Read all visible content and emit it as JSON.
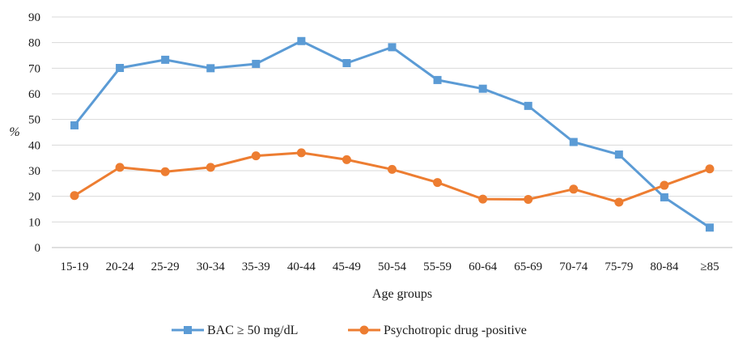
{
  "chart_data": {
    "type": "line",
    "title": "",
    "xlabel": "Age groups",
    "ylabel": "%",
    "categories": [
      "15-19",
      "20-24",
      "25-29",
      "30-34",
      "35-39",
      "40-44",
      "45-49",
      "50-54",
      "55-59",
      "60-64",
      "65-69",
      "70-74",
      "75-79",
      "80-84",
      "≥85"
    ],
    "yticks": [
      "0",
      "10",
      "20",
      "30",
      "40",
      "50",
      "60",
      "70",
      "80",
      "90"
    ],
    "ylim": [
      0,
      90
    ],
    "grid": "horizontal",
    "legend_position": "bottom",
    "series": [
      {
        "name": "BAC ≥ 50 mg/dL",
        "color": "#5B9BD5",
        "marker": "square",
        "values": [
          47.7,
          70.1,
          73.3,
          70.0,
          71.7,
          80.6,
          72.0,
          78.2,
          65.4,
          62.0,
          55.3,
          41.2,
          36.3,
          19.6,
          7.8
        ]
      },
      {
        "name": "Psychotropic drug -positive",
        "color": "#ED7D31",
        "marker": "circle",
        "values": [
          20.3,
          31.3,
          29.6,
          31.3,
          35.8,
          37.0,
          34.3,
          30.5,
          25.4,
          18.9,
          18.8,
          22.8,
          17.7,
          24.3,
          30.7
        ]
      }
    ]
  }
}
